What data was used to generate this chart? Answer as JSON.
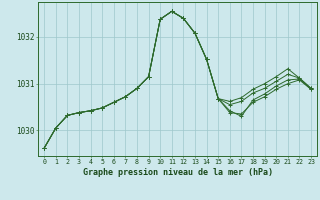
{
  "title": "Graphe pression niveau de la mer (hPa)",
  "background_color": "#cde8ec",
  "line_color": "#2d6a2d",
  "grid_color": "#9fc8cc",
  "xlim": [
    -0.5,
    23.5
  ],
  "ylim": [
    1029.45,
    1032.75
  ],
  "yticks": [
    1030,
    1031,
    1032
  ],
  "xtick_labels": [
    "0",
    "1",
    "2",
    "3",
    "4",
    "5",
    "6",
    "7",
    "8",
    "9",
    "10",
    "11",
    "12",
    "13",
    "14",
    "15",
    "16",
    "17",
    "18",
    "19",
    "20",
    "21",
    "22",
    "23"
  ],
  "series": [
    [
      1029.62,
      1030.05,
      1030.32,
      1030.38,
      1030.42,
      1030.48,
      1030.6,
      1030.72,
      1030.9,
      1031.15,
      1032.38,
      1032.55,
      1032.4,
      1032.08,
      1031.52,
      1030.68,
      1030.62,
      1030.7,
      1030.88,
      1031.0,
      1031.15,
      1031.32,
      1031.12,
      1030.9
    ],
    [
      1029.62,
      1030.05,
      1030.32,
      1030.38,
      1030.42,
      1030.48,
      1030.6,
      1030.72,
      1030.9,
      1031.15,
      1032.38,
      1032.55,
      1032.4,
      1032.08,
      1031.52,
      1030.68,
      1030.55,
      1030.62,
      1030.8,
      1030.9,
      1031.05,
      1031.2,
      1031.12,
      1030.9
    ],
    [
      1029.62,
      1030.05,
      1030.32,
      1030.38,
      1030.42,
      1030.48,
      1030.6,
      1030.72,
      1030.9,
      1031.15,
      1032.38,
      1032.55,
      1032.4,
      1032.08,
      1031.52,
      1030.68,
      1030.42,
      1030.3,
      1030.65,
      1030.78,
      1030.95,
      1031.08,
      1031.1,
      1030.88
    ],
    [
      1029.62,
      1030.05,
      1030.32,
      1030.38,
      1030.42,
      1030.48,
      1030.6,
      1030.72,
      1030.9,
      1031.15,
      1032.38,
      1032.55,
      1032.4,
      1032.08,
      1031.52,
      1030.68,
      1030.38,
      1030.35,
      1030.6,
      1030.72,
      1030.88,
      1031.0,
      1031.08,
      1030.88
    ]
  ]
}
